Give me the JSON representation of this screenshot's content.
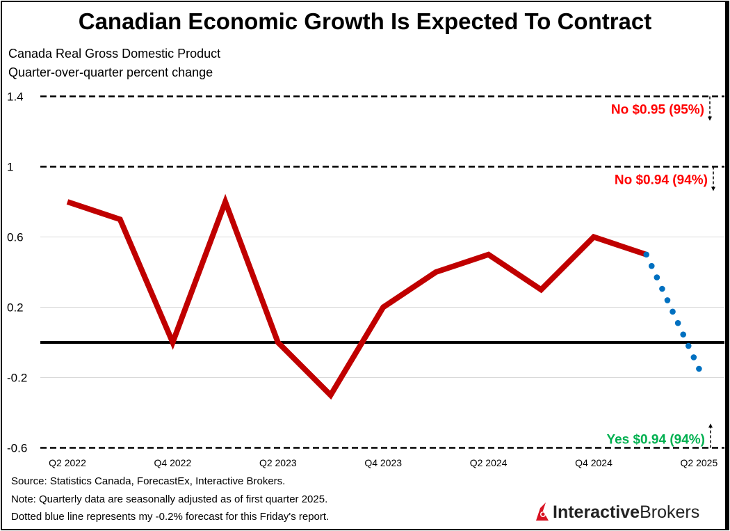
{
  "title": "Canadian Economic Growth Is Expected To Contract",
  "subtitle_lines": [
    "Canada Real Gross Domestic Product",
    "Quarter-over-quarter percent change"
  ],
  "notes": [
    "Source: Statistics Canada, ForecastEx, Interactive Brokers.",
    "Note: Quarterly data are seasonally adjusted as of first quarter 2025.",
    "Dotted blue line represents my -0.2% forecast for this Friday's report."
  ],
  "logo": {
    "text_bold": "Interactive",
    "text_regular": "Brokers"
  },
  "chart_data": {
    "type": "line",
    "categories": [
      "Q2 2022",
      "Q3 2022",
      "Q4 2022",
      "Q1 2023",
      "Q2 2023",
      "Q3 2023",
      "Q4 2023",
      "Q1 2024",
      "Q2 2024",
      "Q3 2024",
      "Q4 2024",
      "Q1 2025",
      "Q2 2025"
    ],
    "x_tick_labels": [
      "Q2 2022",
      "Q4 2022",
      "Q2 2023",
      "Q4 2023",
      "Q2 2024",
      "Q4 2024",
      "Q2 2025"
    ],
    "series": [
      {
        "style": "solid",
        "color": "#c00000",
        "values": [
          0.8,
          0.7,
          0.0,
          0.8,
          0.0,
          -0.3,
          0.2,
          0.4,
          0.5,
          0.3,
          0.6,
          0.5,
          null
        ]
      },
      {
        "style": "dotted",
        "color": "#0070c0",
        "values": [
          null,
          null,
          null,
          null,
          null,
          null,
          null,
          null,
          null,
          null,
          null,
          0.5,
          -0.15
        ]
      }
    ],
    "ylim": [
      -0.6,
      1.4
    ],
    "y_ticks": [
      "-0.6",
      "-0.2",
      "0.2",
      "0.6",
      "1",
      "1.4"
    ],
    "grid": true,
    "thresholds": [
      {
        "value": 1.4,
        "label": "No $0.95 (95%)",
        "color": "#ff0000",
        "arrow": "down"
      },
      {
        "value": 1.0,
        "label": "No $0.94 (94%)",
        "color": "#ff0000",
        "arrow": "down"
      },
      {
        "value": -0.6,
        "label": "Yes $0.94 (94%)",
        "color": "#00b050",
        "arrow": "up"
      }
    ]
  }
}
